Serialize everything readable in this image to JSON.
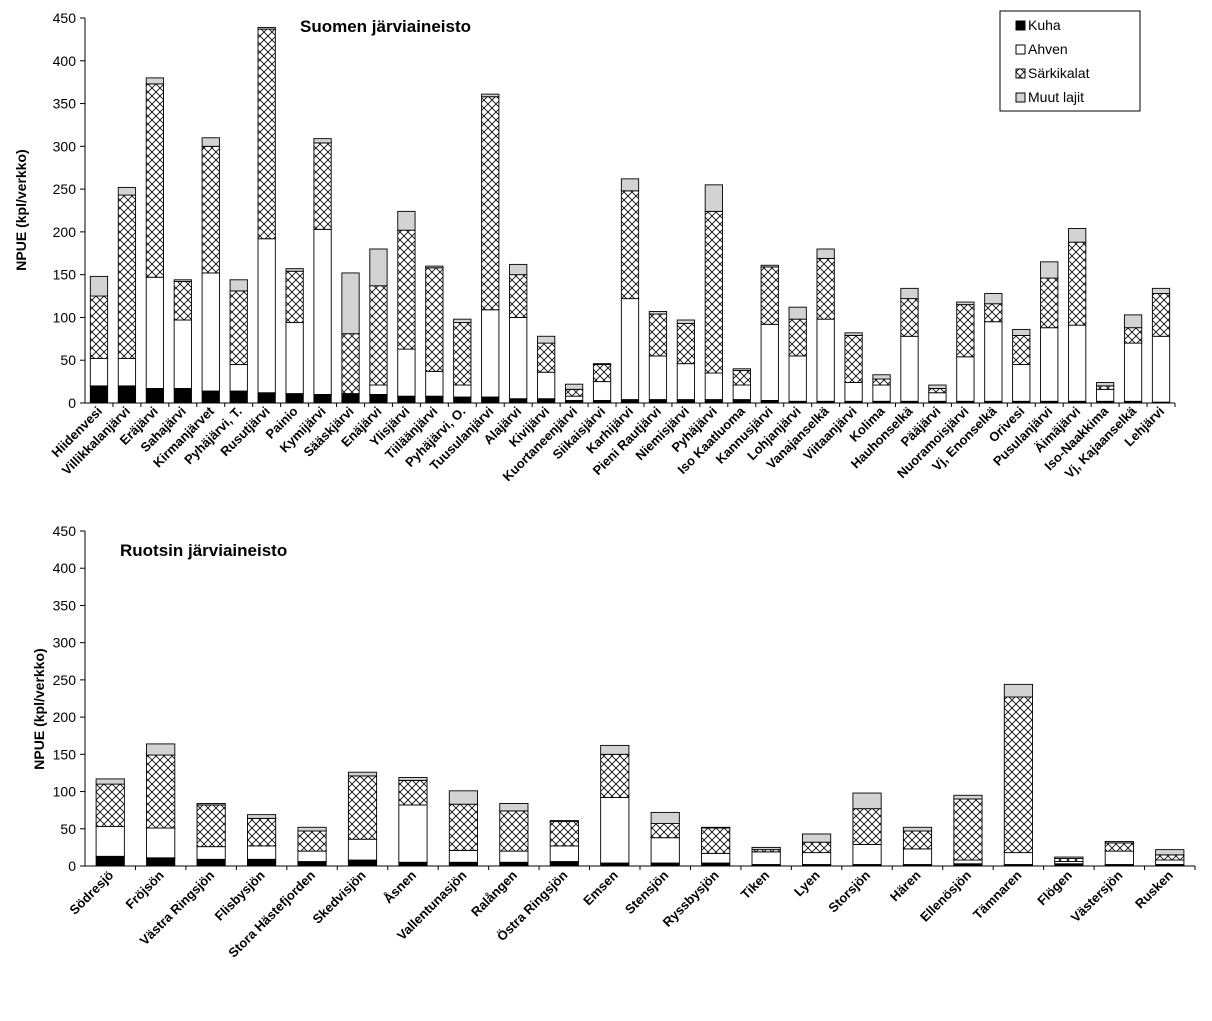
{
  "chart_data": [
    {
      "type": "bar",
      "stacked": true,
      "title": "Suomen järviaineisto",
      "ylabel": "NPUE (kpl/verkko)",
      "xlabel": "",
      "ylim": [
        0,
        450
      ],
      "yticks": [
        0,
        50,
        100,
        150,
        200,
        250,
        300,
        350,
        400,
        450
      ],
      "grid": false,
      "legend_position": "top-right",
      "categories": [
        "Hiidenvesi",
        "Villikkalanjärvi",
        "Eräjärvi",
        "Sahajärvi",
        "Kirmanjärvet",
        "Pyhäjärvi, T.",
        "Rusutjärvi",
        "Painio",
        "Kymijärvi",
        "Sääskjärvi",
        "Enäjärvi",
        "Ylisjärvi",
        "Tiiläänjärvi",
        "Pyhäjärvi, O.",
        "Tuusulanjärvi",
        "Alajärvi",
        "Kivijärvi",
        "Kuortaneenjärvi",
        "Siikaisjärvi",
        "Karhijärvi",
        "Pieni Rautjärvi",
        "Niemisjärvi",
        "Pyhäjärvi",
        "Iso Kaatluoma",
        "Kannusjärvi",
        "Lohjanjärvi",
        "Vanajanselkä",
        "Viitaanjärvi",
        "Kolima",
        "Hauhonselkä",
        "Pääjärvi",
        "Nuoramoisjärvi",
        "Vj, Enonselkä",
        "Orivesi",
        "Pusulanjärvi",
        "Äimäjärvi",
        "Iso-Naakkima",
        "Vj, Kajaanselkä",
        "Lehjärvi"
      ],
      "series": [
        {
          "name": "Kuha",
          "values": [
            20,
            20,
            17,
            17,
            14,
            14,
            12,
            11,
            10,
            11,
            10,
            8,
            8,
            7,
            7,
            5,
            5,
            3,
            3,
            4,
            4,
            4,
            4,
            4,
            3,
            2,
            2,
            2,
            2,
            2,
            2,
            2,
            2,
            2,
            2,
            2,
            2,
            2,
            1
          ]
        },
        {
          "name": "Ahven",
          "values": [
            32,
            32,
            130,
            80,
            138,
            31,
            180,
            83,
            193,
            0,
            11,
            55,
            29,
            14,
            102,
            95,
            31,
            5,
            22,
            118,
            51,
            42,
            31,
            17,
            89,
            53,
            96,
            22,
            19,
            76,
            10,
            52,
            93,
            43,
            86,
            89,
            14,
            68,
            77
          ]
        },
        {
          "name": "Särkikalat",
          "values": [
            73,
            191,
            226,
            45,
            148,
            86,
            245,
            60,
            101,
            70,
            116,
            139,
            121,
            73,
            249,
            50,
            34,
            8,
            20,
            126,
            49,
            47,
            189,
            17,
            67,
            43,
            71,
            55,
            7,
            44,
            5,
            61,
            21,
            34,
            58,
            97,
            4,
            18,
            50
          ]
        },
        {
          "name": "Muut lajit",
          "values": [
            23,
            9,
            7,
            2,
            10,
            13,
            2,
            3,
            5,
            71,
            43,
            22,
            2,
            4,
            3,
            12,
            8,
            6,
            1,
            14,
            3,
            4,
            31,
            2,
            2,
            14,
            11,
            3,
            5,
            12,
            4,
            3,
            12,
            7,
            19,
            16,
            4,
            15,
            6
          ]
        }
      ]
    },
    {
      "type": "bar",
      "stacked": true,
      "title": "Ruotsin järviaineisto",
      "ylabel": "NPUE (kpl/verkko)",
      "xlabel": "",
      "ylim": [
        0,
        450
      ],
      "yticks": [
        0,
        50,
        100,
        150,
        200,
        250,
        300,
        350,
        400,
        450
      ],
      "grid": false,
      "categories": [
        "Södresjö",
        "Fröjsön",
        "Västra Ringsjön",
        "Flisbysjön",
        "Stora Hästefjorden",
        "Skedvisjön",
        "Åsnen",
        "Vallentunasjön",
        "Ralången",
        "Östra Ringsjön",
        "Emsen",
        "Stensjön",
        "Ryssbysjön",
        "Tiken",
        "Lyen",
        "Storsjön",
        "Hären",
        "Ellenösjön",
        "Tämnaren",
        "Flögen",
        "Västersjön",
        "Rusken"
      ],
      "series": [
        {
          "name": "Kuha",
          "values": [
            13,
            11,
            9,
            9,
            6,
            8,
            5,
            5,
            5,
            6,
            4,
            4,
            4,
            2,
            2,
            2,
            2,
            3,
            2,
            3,
            2,
            2
          ]
        },
        {
          "name": "Ahven",
          "values": [
            40,
            40,
            17,
            18,
            14,
            28,
            77,
            16,
            15,
            21,
            88,
            34,
            13,
            17,
            16,
            27,
            21,
            5,
            16,
            3,
            18,
            6
          ]
        },
        {
          "name": "Särkikalat",
          "values": [
            57,
            98,
            56,
            37,
            27,
            85,
            33,
            62,
            54,
            33,
            58,
            19,
            34,
            3,
            14,
            48,
            24,
            82,
            209,
            4,
            11,
            7
          ]
        },
        {
          "name": "Muut lajit",
          "values": [
            7,
            15,
            2,
            5,
            5,
            5,
            4,
            18,
            10,
            1,
            12,
            15,
            1,
            3,
            11,
            21,
            5,
            5,
            17,
            2,
            2,
            7
          ]
        }
      ]
    }
  ],
  "legend": [
    {
      "label": "Kuha"
    },
    {
      "label": "Ahven"
    },
    {
      "label": "Särkikalat"
    },
    {
      "label": "Muut lajit"
    }
  ],
  "colors": {
    "kuha": "#000000",
    "ahven": "#ffffff",
    "sarkikalat": "crosshatch",
    "muut": "#d3d3d3",
    "outline": "#000000"
  }
}
